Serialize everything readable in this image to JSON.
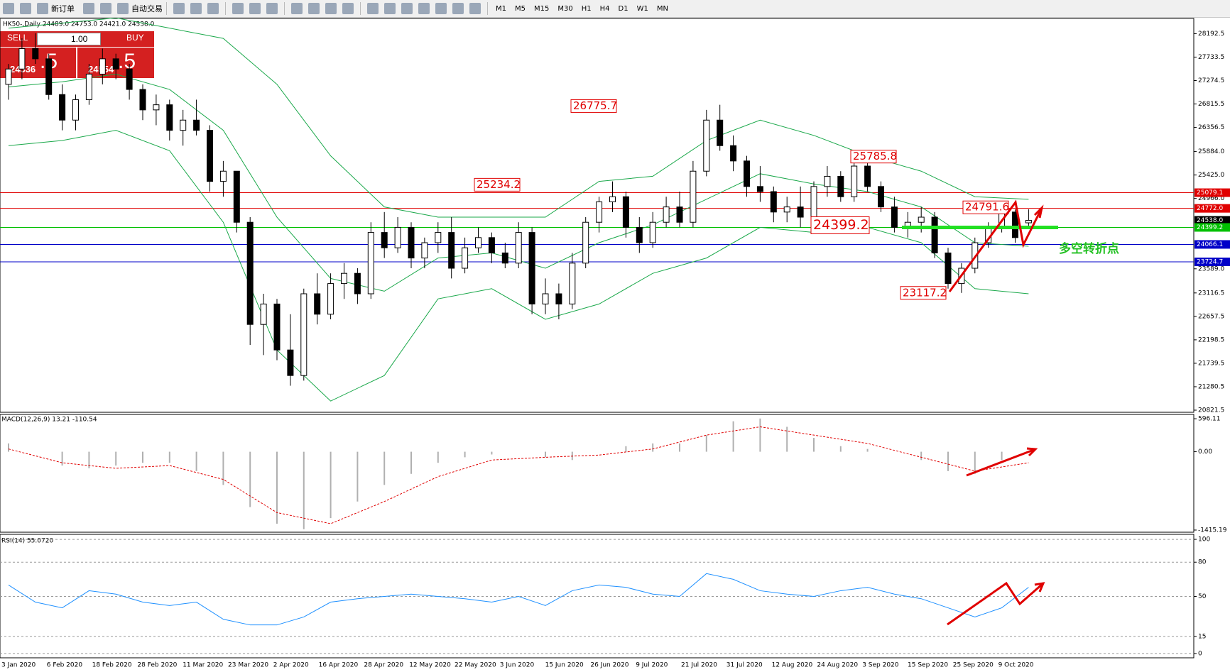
{
  "toolbar": {
    "new_order": "新订单",
    "auto_trading": "自动交易",
    "timeframes": [
      "M1",
      "M5",
      "M15",
      "M30",
      "H1",
      "H4",
      "D1",
      "W1",
      "MN"
    ]
  },
  "trade_panel": {
    "sell": "SELL",
    "buy": "BUY",
    "lots": "1.00",
    "bid_main": "24536",
    "bid_frac": ".5",
    "ask_main": "24554",
    "ask_frac": ".5"
  },
  "main_chart": {
    "header": "HK50-,Daily  24489.0 24753.0 24421.0 24538.0",
    "ylim": [
      20780,
      28490
    ],
    "yticks": [
      28192.5,
      27733.5,
      27274.5,
      26815.5,
      26356.5,
      {
        "value": 25884,
        "label": "25884.0"
      },
      {
        "value": 25425,
        "label": "25425.0"
      },
      {
        "value": 24966,
        "label": "24966.0"
      },
      {
        "value": 23589,
        "label": "23589.0"
      },
      23116.5,
      22657.5,
      22198.5,
      21739.5,
      21280.5,
      20821.5
    ],
    "candles": [
      [
        27200,
        27600,
        26900,
        27500
      ],
      [
        27500,
        28100,
        27300,
        27900
      ],
      [
        27900,
        28200,
        27600,
        27700
      ],
      [
        27700,
        27800,
        26900,
        27000
      ],
      [
        27000,
        27200,
        26300,
        26500
      ],
      [
        26500,
        27000,
        26300,
        26900
      ],
      [
        26900,
        27600,
        26800,
        27400
      ],
      [
        27400,
        27900,
        27200,
        27700
      ],
      [
        27700,
        27800,
        27300,
        27500
      ],
      [
        27500,
        27600,
        26900,
        27100
      ],
      [
        27100,
        27200,
        26500,
        26700
      ],
      [
        26700,
        27000,
        26400,
        26800
      ],
      [
        26800,
        26900,
        26100,
        26300
      ],
      [
        26300,
        26700,
        26000,
        26500
      ],
      [
        26500,
        26900,
        26200,
        26300
      ],
      [
        26300,
        26400,
        25100,
        25300
      ],
      [
        25300,
        25700,
        25000,
        25500
      ],
      [
        25500,
        25500,
        24300,
        24500
      ],
      [
        24500,
        24600,
        22100,
        22500
      ],
      [
        22500,
        23100,
        21900,
        22900
      ],
      [
        22900,
        23000,
        21800,
        22000
      ],
      [
        22000,
        22700,
        21300,
        21500
      ],
      [
        21500,
        23200,
        21400,
        23100
      ],
      [
        23100,
        23500,
        22500,
        22700
      ],
      [
        22700,
        23500,
        22600,
        23300
      ],
      [
        23300,
        23700,
        23000,
        23500
      ],
      [
        23500,
        23600,
        22900,
        23100
      ],
      [
        23100,
        24500,
        23000,
        24300
      ],
      [
        24300,
        24700,
        23800,
        24000
      ],
      [
        24000,
        24600,
        23900,
        24400
      ],
      [
        24400,
        24500,
        23600,
        23800
      ],
      [
        23800,
        24200,
        23600,
        24100
      ],
      [
        24100,
        24500,
        23900,
        24300
      ],
      [
        24300,
        24600,
        23400,
        23600
      ],
      [
        23600,
        24200,
        23500,
        24000
      ],
      [
        24000,
        24400,
        23900,
        24200
      ],
      [
        24200,
        24300,
        23700,
        23900
      ],
      [
        23900,
        24100,
        23600,
        23700
      ],
      [
        23700,
        24500,
        23600,
        24300
      ],
      [
        24300,
        24400,
        22700,
        22900
      ],
      [
        22900,
        23400,
        22700,
        23100
      ],
      [
        23100,
        23300,
        22600,
        22900
      ],
      [
        22900,
        23900,
        22800,
        23700
      ],
      [
        23700,
        24600,
        23600,
        24500
      ],
      [
        24500,
        25000,
        24300,
        24900
      ],
      [
        24900,
        25300,
        24700,
        25000
      ],
      [
        25000,
        25100,
        24200,
        24400
      ],
      [
        24400,
        24600,
        23900,
        24100
      ],
      [
        24100,
        24700,
        24000,
        24500
      ],
      [
        24500,
        25000,
        24400,
        24800
      ],
      [
        24800,
        25100,
        24400,
        24500
      ],
      [
        24500,
        25700,
        24400,
        25500
      ],
      [
        25500,
        26700,
        25400,
        26500
      ],
      [
        26500,
        26800,
        25900,
        26000
      ],
      [
        26000,
        26200,
        25500,
        25700
      ],
      [
        25700,
        25800,
        25000,
        25200
      ],
      [
        25200,
        25600,
        24900,
        25100
      ],
      [
        25100,
        25200,
        24500,
        24700
      ],
      [
        24700,
        25000,
        24500,
        24800
      ],
      [
        24800,
        25200,
        24400,
        24600
      ],
      [
        24600,
        25300,
        24500,
        25200
      ],
      [
        25200,
        25600,
        25000,
        25400
      ],
      [
        25400,
        25500,
        24900,
        25000
      ],
      [
        25000,
        25800,
        24900,
        25600
      ],
      [
        25600,
        25786,
        25100,
        25200
      ],
      [
        25200,
        25300,
        24700,
        24800
      ],
      [
        24800,
        25000,
        24300,
        24400
      ],
      [
        24400,
        24700,
        24200,
        24500
      ],
      [
        24500,
        24800,
        24300,
        24600
      ],
      [
        24600,
        24700,
        23800,
        23900
      ],
      [
        23900,
        24000,
        23200,
        23300
      ],
      [
        23300,
        23700,
        23117,
        23600
      ],
      [
        23600,
        24200,
        23500,
        24100
      ],
      [
        24100,
        24500,
        24000,
        24400
      ],
      [
        24400,
        24792,
        24300,
        24700
      ],
      [
        24700,
        24750,
        24100,
        24200
      ],
      [
        24489,
        24753,
        24421,
        24538
      ]
    ],
    "bollinger": {
      "color": "#1aa84a",
      "upper": [
        28300,
        28400,
        28500,
        28300,
        28100,
        27200,
        25800,
        24800,
        24600,
        24600,
        24600,
        25300,
        25400,
        26100,
        26500,
        26200,
        25800,
        25500,
        25000,
        24950
      ],
      "middle": [
        27150,
        27250,
        27400,
        27100,
        26300,
        24600,
        23400,
        23150,
        23800,
        23900,
        23600,
        24100,
        24450,
        24950,
        25450,
        25250,
        25100,
        24800,
        24100,
        24030
      ],
      "lower": [
        26000,
        26100,
        26300,
        25900,
        24500,
        22000,
        21000,
        21500,
        23000,
        23200,
        22600,
        22900,
        23500,
        23800,
        24400,
        24300,
        24400,
        24100,
        23200,
        23100
      ]
    },
    "levels": [
      {
        "value": 25079.1,
        "color": "#e00000"
      },
      {
        "value": 24772,
        "label": "24772.0",
        "color": "#e00000"
      },
      {
        "value": 24538,
        "label": "24538.0",
        "color": "#000000"
      },
      {
        "value": 24399.2,
        "color": "#00c000"
      },
      {
        "value": 24066.1,
        "color": "#0000c8"
      },
      {
        "value": 23724.7,
        "color": "#0000c8"
      }
    ],
    "annotations": [
      26775.7,
      25234.2,
      25785.8,
      24791.6,
      23117.2
    ],
    "big_label": 24399.2,
    "note": "多空转折点"
  },
  "macd": {
    "header": "MACD(12,26,9) 13.21 -110.54",
    "ylim": [
      -1454,
      674
    ],
    "yticks": [
      596.11,
      {
        "value": 0,
        "label": "0.00"
      },
      -1415.19
    ],
    "histogram": [
      150,
      0,
      -250,
      -300,
      -250,
      -200,
      -200,
      -350,
      -600,
      -1000,
      -1300,
      -1400,
      -1200,
      -900,
      -600,
      -400,
      -200,
      -100,
      -50,
      0,
      -100,
      -150,
      0,
      100,
      150,
      150,
      300,
      550,
      600,
      450,
      250,
      100,
      50,
      0,
      -150,
      -350,
      -400,
      -150,
      0
    ],
    "signal": [
      50,
      -200,
      -300,
      -250,
      -500,
      -1100,
      -1300,
      -900,
      -450,
      -150,
      -100,
      -60,
      50,
      300,
      450,
      300,
      150,
      -100,
      -350,
      -200
    ]
  },
  "rsi": {
    "header": "RSI(14) 55.0720",
    "ylim": [
      -3.8,
      104.4
    ],
    "yticks": [
      100,
      80,
      50,
      15,
      0
    ],
    "values": [
      60,
      45,
      40,
      55,
      52,
      45,
      42,
      45,
      30,
      25,
      25,
      32,
      45,
      48,
      50,
      52,
      50,
      48,
      45,
      50,
      42,
      55,
      60,
      58,
      52,
      50,
      70,
      65,
      55,
      52,
      50,
      55,
      58,
      52,
      48,
      40,
      32,
      40,
      58
    ]
  },
  "dates": [
    "3 Jan 2020",
    "6 Feb 2020",
    "18 Feb 2020",
    "28 Feb 2020",
    "11 Mar 2020",
    "23 Mar 2020",
    "2 Apr 2020",
    "16 Apr 2020",
    "28 Apr 2020",
    "12 May 2020",
    "22 May 2020",
    "3 Jun 2020",
    "15 Jun 2020",
    "26 Jun 2020",
    "9 Jul 2020",
    "21 Jul 2020",
    "31 Jul 2020",
    "12 Aug 2020",
    "24 Aug 2020",
    "3 Sep 2020",
    "15 Sep 2020",
    "25 Sep 2020",
    "9 Oct 2020"
  ]
}
